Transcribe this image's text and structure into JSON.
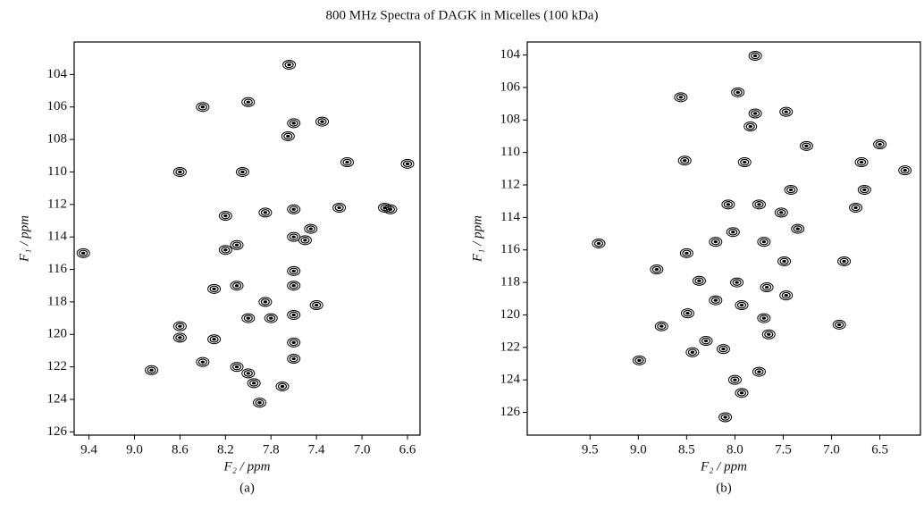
{
  "title": "800 MHz Spectra of DAGK in Micelles (100 kDa)",
  "chart_data": [
    {
      "type": "scatter",
      "label": "(a)",
      "xlabel": "F₂ / ppm",
      "ylabel": "F₁ / ppm",
      "color": "#000000",
      "xlim": [
        9.53,
        6.49
      ],
      "ylim": [
        126.2,
        102
      ],
      "xticks": [
        9.4,
        {
          "value": 9.0,
          "label": "9.0"
        },
        8.6,
        8.2,
        7.8,
        7.4,
        {
          "value": 7.0,
          "label": "7.0"
        },
        6.6
      ],
      "yticks": [
        104,
        106,
        108,
        110,
        112,
        114,
        116,
        118,
        120,
        122,
        124,
        126
      ],
      "x": [
        7.64,
        8.0,
        8.4,
        7.6,
        7.35,
        7.65,
        8.6,
        8.05,
        7.13,
        6.6,
        8.2,
        7.2,
        6.8,
        6.75,
        7.6,
        7.85,
        7.45,
        8.2,
        8.1,
        7.6,
        7.5,
        9.45,
        7.6,
        8.3,
        8.1,
        7.6,
        7.85,
        7.4,
        8.0,
        7.8,
        7.6,
        8.6,
        8.6,
        8.3,
        7.6,
        7.6,
        8.4,
        8.1,
        8.0,
        7.95,
        8.85,
        7.9,
        7.7
      ],
      "y": [
        103.4,
        105.7,
        106.0,
        107.0,
        106.9,
        107.8,
        110.0,
        110.0,
        109.4,
        109.5,
        112.7,
        112.2,
        112.2,
        112.3,
        112.3,
        112.5,
        113.5,
        114.8,
        114.5,
        114.0,
        114.2,
        115.0,
        116.1,
        117.2,
        117.0,
        117.0,
        118.0,
        118.2,
        119.0,
        119.0,
        118.8,
        119.5,
        120.2,
        120.3,
        120.5,
        121.5,
        121.7,
        122.0,
        122.4,
        123.0,
        122.2,
        124.2,
        123.2
      ]
    },
    {
      "type": "scatter",
      "label": "(b)",
      "xlabel": "F₂ / ppm",
      "ylabel": "F₁ / ppm",
      "color": "#000000",
      "xlim": [
        10.15,
        6.08
      ],
      "ylim": [
        127.4,
        103.2
      ],
      "xticks": [
        9.5,
        {
          "value": 9.0,
          "label": "9.0"
        },
        8.5,
        {
          "value": 8.0,
          "label": "8.0"
        },
        7.5,
        {
          "value": 7.0,
          "label": "7.0"
        },
        6.5
      ],
      "yticks": [
        104,
        106,
        108,
        110,
        112,
        114,
        116,
        118,
        120,
        122,
        124,
        126
      ],
      "x": [
        7.79,
        7.97,
        8.56,
        7.79,
        7.47,
        7.84,
        8.52,
        7.9,
        7.26,
        6.5,
        6.24,
        6.69,
        9.41,
        6.66,
        6.75,
        8.07,
        7.75,
        7.42,
        7.52,
        7.35,
        8.02,
        8.2,
        7.7,
        7.49,
        8.5,
        8.37,
        8.81,
        7.98,
        7.67,
        7.47,
        8.2,
        7.93,
        8.49,
        8.76,
        7.7,
        7.65,
        8.3,
        8.44,
        8.12,
        8.99,
        8.0,
        7.93,
        6.92,
        8.1,
        6.87,
        7.75
      ],
      "y": [
        104.05,
        106.3,
        106.6,
        107.6,
        107.5,
        108.4,
        110.5,
        110.6,
        109.6,
        109.5,
        111.1,
        110.6,
        115.6,
        112.3,
        113.4,
        113.2,
        113.2,
        112.3,
        113.7,
        114.7,
        114.9,
        115.5,
        115.5,
        116.7,
        116.2,
        117.9,
        117.2,
        118.0,
        118.3,
        118.8,
        119.1,
        119.4,
        119.9,
        120.7,
        120.2,
        121.2,
        121.6,
        122.3,
        122.1,
        122.8,
        124.0,
        124.8,
        120.6,
        126.3,
        116.7,
        123.5
      ]
    }
  ]
}
